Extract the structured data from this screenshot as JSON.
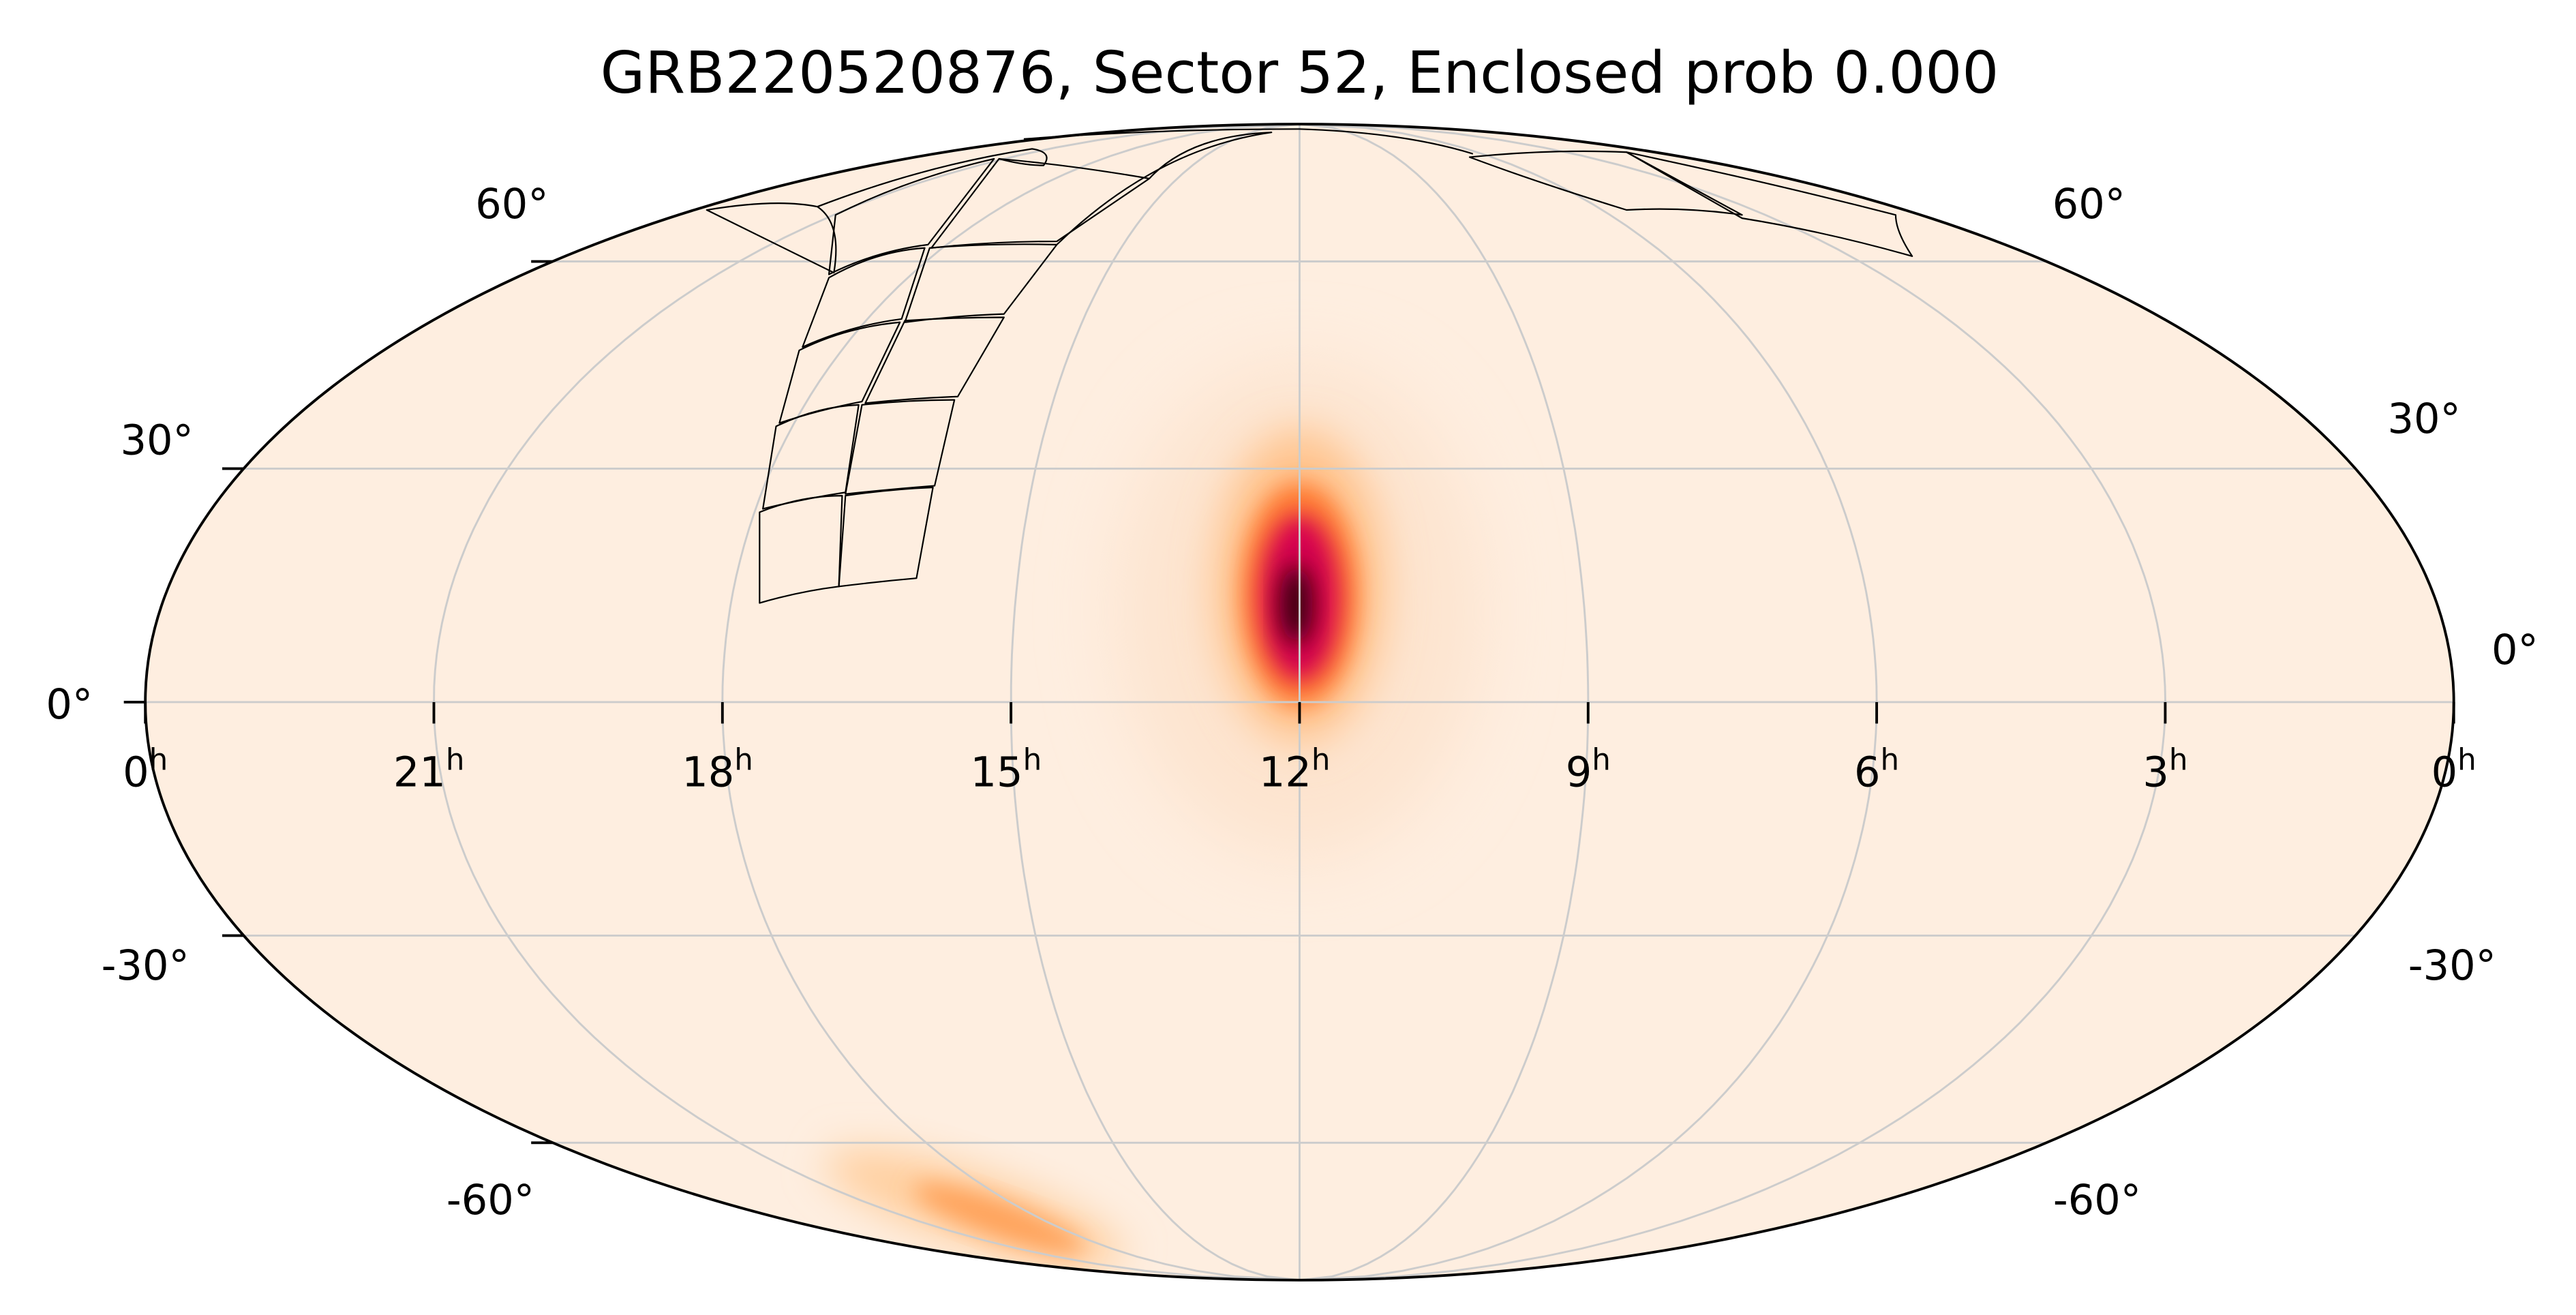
{
  "chart_data": {
    "type": "heatmap",
    "projection": "mollweide",
    "title": "GRB220520876, Sector 52, Enclosed prob 0.000",
    "ra_tick_labels": [
      {
        "ra": 24,
        "label": "0",
        "sup": "h"
      },
      {
        "ra": 21,
        "label": "21",
        "sup": "h"
      },
      {
        "ra": 18,
        "label": "18",
        "sup": "h"
      },
      {
        "ra": 15,
        "label": "15",
        "sup": "h"
      },
      {
        "ra": 12,
        "label": "12",
        "sup": "h"
      },
      {
        "ra": 9,
        "label": "9",
        "sup": "h"
      },
      {
        "ra": 6,
        "label": "6",
        "sup": "h"
      },
      {
        "ra": 3,
        "label": "3",
        "sup": "h"
      },
      {
        "ra": 0,
        "label": "0",
        "sup": "h"
      }
    ],
    "dec_tick_labels_left": [
      {
        "dec": 60,
        "label": "60°"
      },
      {
        "dec": 30,
        "label": "30°"
      },
      {
        "dec": 0,
        "label": "0°"
      },
      {
        "dec": -30,
        "label": "-30°"
      },
      {
        "dec": -60,
        "label": "-60°"
      }
    ],
    "dec_tick_labels_right": [
      {
        "dec": 60,
        "label": "60°"
      },
      {
        "dec": 30,
        "label": "30°"
      },
      {
        "dec": 0,
        "label": "0°"
      },
      {
        "dec": -30,
        "label": "-30°"
      },
      {
        "dec": -60,
        "label": "-60°"
      }
    ],
    "grid": true,
    "grid_ra_step_hours": 3,
    "grid_dec_values": [
      -60,
      -30,
      0,
      30,
      60
    ],
    "colormap": "gist_heat_r",
    "colors": {
      "background": "#feeee0",
      "low": "#ffd2a8",
      "mid": "#ff7a30",
      "high": "#d6004f",
      "peak": "#3a0008",
      "grid": "#cccccc",
      "footprint": "#000000"
    },
    "probability_peaks": [
      {
        "ra_hours": 12.0,
        "dec_deg": 10,
        "level": "high"
      },
      {
        "ra_hours": 16.5,
        "dec_deg": -75,
        "level": "low"
      }
    ],
    "footprint": "TESS Sector 52 camera/CCD outlines"
  }
}
